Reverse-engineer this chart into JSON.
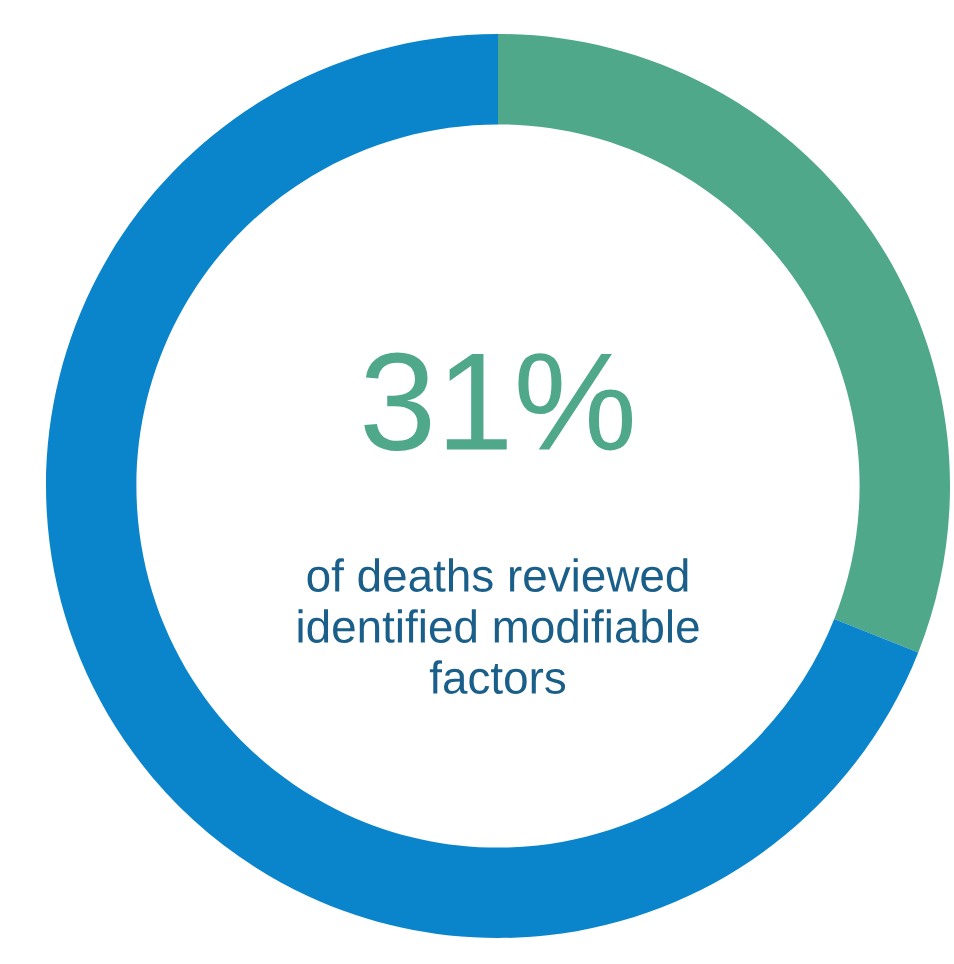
{
  "chart_data": {
    "type": "donut",
    "categories": [
      null,
      null
    ],
    "values": [
      31,
      69
    ],
    "colors": [
      "#4fa88a",
      "#0a85cc"
    ],
    "annotations": [
      "31%",
      "of deaths reviewed\nidentified modifiable\nfactors"
    ],
    "legend": false
  }
}
